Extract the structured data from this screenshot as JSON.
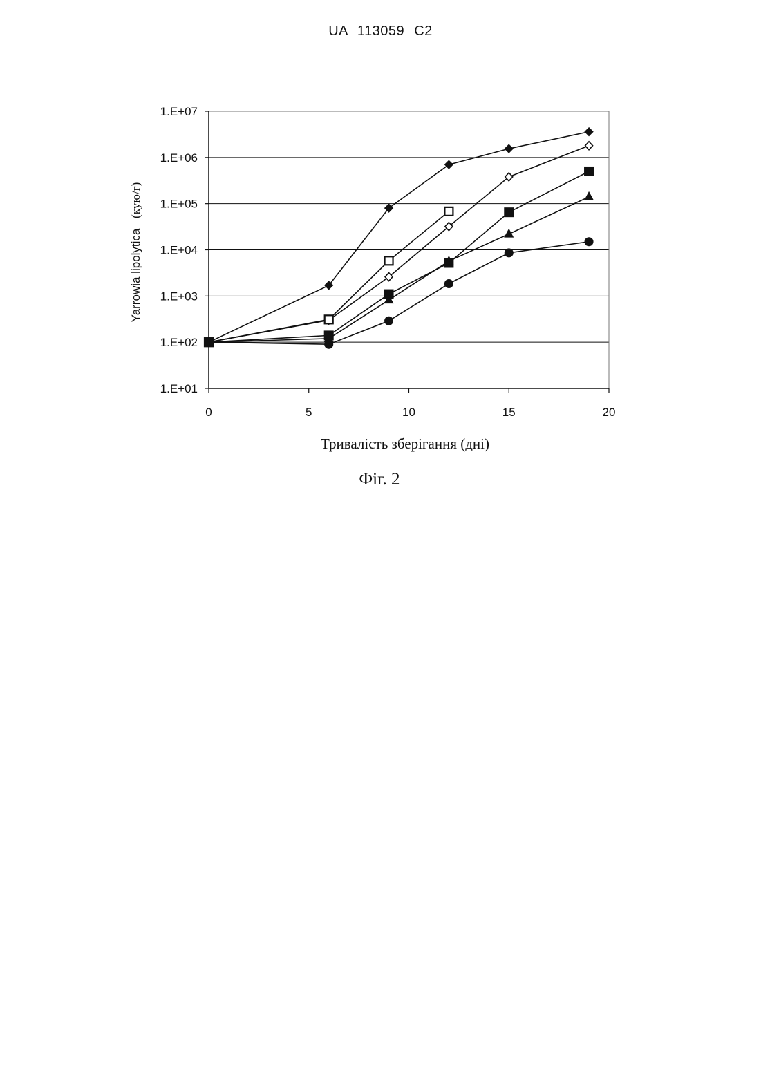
{
  "header": {
    "text": "UA 113059 C2"
  },
  "figure": {
    "caption": "Фіг. 2"
  },
  "chart_data": {
    "type": "line",
    "xlabel": "Тривалість зберігання (дні)",
    "ylabel": "Yarrowia lipolytica (кую/г)",
    "ylabel_main": "Yarrowia lipolytica",
    "ylabel_unit": "(кую/г)",
    "xlim": [
      0,
      20
    ],
    "ylim": [
      10,
      10000000
    ],
    "yscale": "log",
    "xticks": [
      0,
      5,
      10,
      15,
      20
    ],
    "xtick_labels": [
      "0",
      "5",
      "10",
      "15",
      "20"
    ],
    "yticks": [
      10,
      100,
      1000,
      10000,
      100000,
      1000000,
      10000000
    ],
    "ytick_labels": [
      "1.E+01",
      "1.E+02",
      "1.E+03",
      "1.E+04",
      "1.E+05",
      "1.E+06",
      "1.E+07"
    ],
    "grid": "horizontal",
    "legend": "none",
    "series": [
      {
        "marker": "diamond-filled",
        "x": [
          0,
          6,
          9,
          12,
          15,
          19
        ],
        "values": [
          100,
          1700,
          80000,
          700000,
          1550000,
          3600000
        ]
      },
      {
        "marker": "diamond-open",
        "x": [
          0,
          6,
          9,
          12,
          15,
          19
        ],
        "values": [
          100,
          300,
          2600,
          32000,
          380000,
          1800000
        ]
      },
      {
        "marker": "square-open",
        "x": [
          0,
          6,
          9,
          12
        ],
        "values": [
          100,
          310,
          5800,
          68000
        ]
      },
      {
        "marker": "square-filled",
        "x": [
          0,
          6,
          9,
          12,
          15,
          19
        ],
        "values": [
          100,
          140,
          1100,
          5200,
          65000,
          500000
        ]
      },
      {
        "marker": "triangle-filled",
        "x": [
          0,
          6,
          9,
          12,
          15,
          19
        ],
        "values": [
          100,
          120,
          820,
          5700,
          22000,
          140000
        ]
      },
      {
        "marker": "circle-filled",
        "x": [
          0,
          6,
          9,
          12,
          15,
          19
        ],
        "values": [
          100,
          90,
          290,
          1850,
          8600,
          15000
        ]
      }
    ]
  }
}
